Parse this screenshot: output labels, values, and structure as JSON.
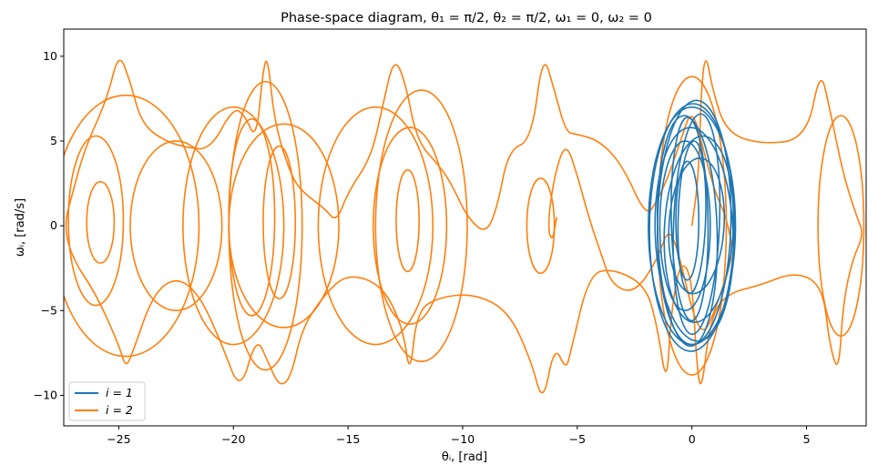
{
  "chart_data": {
    "type": "line",
    "title": "Phase-space diagram, θ₁ = π/2, θ₂ = π/2, ω₁ = 0, ω₂ = 0",
    "xlabel": "θᵢ, [rad]",
    "ylabel": "ωᵢ, [rad/s]",
    "xlim": [
      -27.4,
      7.6
    ],
    "ylim": [
      -11.8,
      11.6
    ],
    "xticks": [
      -25,
      -20,
      -15,
      -10,
      -5,
      0,
      5
    ],
    "yticks": [
      -10,
      -5,
      0,
      5,
      10
    ],
    "xtick_labels": [
      "−25",
      "−20",
      "−15",
      "−10",
      "−5",
      "0",
      "5"
    ],
    "ytick_labels": [
      "−10",
      "−5",
      "0",
      "5",
      "10"
    ],
    "grid": false,
    "legend_position": "lower-left",
    "series": [
      {
        "name": "i = 1",
        "color": "#1f77b4",
        "description_kind": "loops",
        "loops": [
          {
            "cx": 0.0,
            "cy": 0.0,
            "rx": 1.9,
            "ry": 7.0,
            "rot": 0.0
          },
          {
            "cx": 0.1,
            "cy": 0.2,
            "rx": 1.6,
            "ry": 7.2,
            "rot": 0.02
          },
          {
            "cx": -0.2,
            "cy": -0.3,
            "rx": 1.3,
            "ry": 6.8,
            "rot": -0.03
          },
          {
            "cx": 0.2,
            "cy": 0.1,
            "rx": 1.0,
            "ry": 6.5,
            "rot": 0.04
          },
          {
            "cx": -0.1,
            "cy": 0.4,
            "rx": 0.8,
            "ry": 6.0,
            "rot": -0.02
          },
          {
            "cx": 0.3,
            "cy": -0.2,
            "rx": 1.5,
            "ry": 5.5,
            "rot": 0.05
          },
          {
            "cx": -0.3,
            "cy": 0.0,
            "rx": 1.1,
            "ry": 5.0,
            "rot": 0.0
          },
          {
            "cx": 0.0,
            "cy": 0.5,
            "rx": 0.6,
            "ry": 4.5,
            "rot": 0.03
          },
          {
            "cx": 0.1,
            "cy": -0.5,
            "rx": 1.7,
            "ry": 6.3,
            "rot": -0.04
          },
          {
            "cx": -0.2,
            "cy": 0.3,
            "rx": 0.5,
            "ry": 3.5,
            "rot": 0.0
          },
          {
            "cx": 0.2,
            "cy": 0.0,
            "rx": 1.2,
            "ry": 4.0,
            "rot": 0.06
          },
          {
            "cx": 0.0,
            "cy": -0.1,
            "rx": 1.85,
            "ry": 7.3,
            "rot": 0.01
          }
        ]
      },
      {
        "name": "i = 2",
        "color": "#ff7f0e",
        "description_kind": "polyline",
        "points": [
          [
            0.0,
            0.0
          ],
          [
            0.3,
            3.0
          ],
          [
            0.4,
            8.0
          ],
          [
            0.6,
            10.3
          ],
          [
            0.9,
            8.0
          ],
          [
            1.5,
            5.5
          ],
          [
            3.0,
            4.8
          ],
          [
            5.0,
            5.1
          ],
          [
            5.6,
            9.3
          ],
          [
            6.0,
            7.0
          ],
          [
            6.6,
            3.0
          ],
          [
            7.2,
            0.5
          ],
          [
            7.5,
            -0.5
          ],
          [
            7.0,
            -2.0
          ],
          [
            6.6,
            -4.5
          ],
          [
            6.4,
            -8.8
          ],
          [
            6.0,
            -7.0
          ],
          [
            5.7,
            -3.5
          ],
          [
            4.5,
            -2.7
          ],
          [
            3.0,
            -3.5
          ],
          [
            1.5,
            -4.0
          ],
          [
            0.8,
            -5.5
          ],
          [
            0.4,
            -10.0
          ],
          [
            0.2,
            -8.0
          ],
          [
            0.0,
            -3.0
          ],
          [
            -0.5,
            -2.0
          ],
          [
            -0.9,
            -5.0
          ],
          [
            -1.1,
            -9.6
          ],
          [
            -1.5,
            -6.0
          ],
          [
            -2.0,
            -3.5
          ],
          [
            -3.5,
            -2.5
          ],
          [
            -4.5,
            -2.9
          ],
          [
            -5.3,
            -7.5
          ],
          [
            -5.5,
            -8.5
          ],
          [
            -6.0,
            -7.0
          ],
          [
            -6.5,
            -10.6
          ],
          [
            -7.0,
            -8.0
          ],
          [
            -8.0,
            -5.0
          ],
          [
            -9.5,
            -4.0
          ],
          [
            -11.0,
            -4.2
          ],
          [
            -12.0,
            -5.0
          ],
          [
            -12.3,
            -9.0
          ],
          [
            -12.6,
            -6.0
          ],
          [
            -13.5,
            -3.5
          ],
          [
            -15.0,
            -2.8
          ],
          [
            -16.0,
            -4.0
          ],
          [
            -17.0,
            -6.0
          ],
          [
            -17.5,
            -9.0
          ],
          [
            -18.0,
            -9.5
          ],
          [
            -18.5,
            -8.0
          ],
          [
            -19.0,
            -6.5
          ],
          [
            -19.7,
            -9.9
          ],
          [
            -20.5,
            -7.0
          ],
          [
            -21.5,
            -4.0
          ],
          [
            -22.5,
            -3.0
          ],
          [
            -23.5,
            -4.0
          ],
          [
            -24.4,
            -7.5
          ],
          [
            -24.7,
            -8.4
          ],
          [
            -25.0,
            -7.0
          ],
          [
            -26.0,
            -4.0
          ],
          [
            -27.0,
            -2.0
          ],
          [
            -27.4,
            0.0
          ],
          [
            -27.0,
            2.0
          ],
          [
            -26.5,
            4.5
          ],
          [
            -25.5,
            7.5
          ],
          [
            -25.0,
            10.3
          ],
          [
            -24.5,
            8.5
          ],
          [
            -24.0,
            6.0
          ],
          [
            -23.0,
            5.0
          ],
          [
            -22.0,
            4.6
          ],
          [
            -21.0,
            4.5
          ],
          [
            -20.0,
            7.0
          ],
          [
            -19.5,
            6.5
          ],
          [
            -19.0,
            5.0
          ],
          [
            -18.7,
            9.3
          ],
          [
            -18.5,
            10.0
          ],
          [
            -18.2,
            6.0
          ],
          [
            -17.5,
            3.0
          ],
          [
            -17.0,
            2.0
          ],
          [
            -16.0,
            1.0
          ],
          [
            -15.5,
            0.2
          ],
          [
            -15.0,
            2.0
          ],
          [
            -14.0,
            4.0
          ],
          [
            -13.5,
            7.0
          ],
          [
            -13.0,
            10.0
          ],
          [
            -12.5,
            8.5
          ],
          [
            -12.0,
            5.0
          ],
          [
            -11.0,
            3.5
          ],
          [
            -10.5,
            2.5
          ],
          [
            -9.8,
            0.5
          ],
          [
            -9.0,
            -0.5
          ],
          [
            -8.5,
            1.0
          ],
          [
            -8.0,
            4.5
          ],
          [
            -7.0,
            5.0
          ],
          [
            -6.5,
            10.3
          ],
          [
            -6.0,
            8.0
          ],
          [
            -5.5,
            5.5
          ],
          [
            -5.0,
            5.4
          ],
          [
            -4.0,
            5.0
          ],
          [
            -3.0,
            3.5
          ],
          [
            -2.0,
            0.5
          ],
          [
            -1.5,
            1.5
          ],
          [
            -1.0,
            3.0
          ],
          [
            -0.5,
            5.0
          ],
          [
            0.0,
            7.0
          ],
          [
            0.5,
            4.5
          ],
          [
            1.0,
            2.0
          ],
          [
            1.5,
            0.5
          ],
          [
            1.8,
            -1.5
          ],
          [
            1.5,
            -3.0
          ],
          [
            1.0,
            -5.0
          ],
          [
            0.5,
            -6.5
          ],
          [
            0.0,
            -5.0
          ],
          [
            -0.5,
            -2.0
          ],
          [
            -1.0,
            0.0
          ],
          [
            -1.5,
            -2.0
          ],
          [
            -2.5,
            -4.0
          ],
          [
            -3.5,
            -3.5
          ],
          [
            -4.0,
            -1.5
          ],
          [
            -4.5,
            0.5
          ],
          [
            -5.0,
            3.0
          ],
          [
            -5.5,
            5.0
          ],
          [
            -6.0,
            3.0
          ],
          [
            -6.3,
            0.0
          ],
          [
            -6.1,
            -1.0
          ],
          [
            -5.9,
            0.5
          ]
        ],
        "extra_loops": [
          {
            "cx": -26.0,
            "cy": 0.3,
            "rx": 1.2,
            "ry": 5.0
          },
          {
            "cx": -25.8,
            "cy": 0.2,
            "rx": 0.6,
            "ry": 2.4
          },
          {
            "cx": -20.0,
            "cy": 0.0,
            "rx": 2.2,
            "ry": 7.0
          },
          {
            "cx": -19.2,
            "cy": 0.5,
            "rx": 1.0,
            "ry": 5.8
          },
          {
            "cx": -18.6,
            "cy": 0.0,
            "rx": 1.6,
            "ry": 8.5
          },
          {
            "cx": -18.0,
            "cy": 0.2,
            "rx": 0.7,
            "ry": 4.5
          },
          {
            "cx": -17.8,
            "cy": 0.0,
            "rx": 2.4,
            "ry": 6.0
          },
          {
            "cx": -13.8,
            "cy": 0.0,
            "rx": 2.5,
            "ry": 7.0
          },
          {
            "cx": -12.3,
            "cy": 0.0,
            "rx": 1.6,
            "ry": 5.8
          },
          {
            "cx": -12.4,
            "cy": 0.3,
            "rx": 0.5,
            "ry": 3.0
          },
          {
            "cx": -11.8,
            "cy": 0.0,
            "rx": 2.0,
            "ry": 8.0
          },
          {
            "cx": -6.6,
            "cy": 0.0,
            "rx": 0.6,
            "ry": 2.8
          },
          {
            "cx": 0.0,
            "cy": 0.0,
            "rx": 1.5,
            "ry": 8.8
          },
          {
            "cx": 6.5,
            "cy": 0.0,
            "rx": 1.0,
            "ry": 6.5
          },
          {
            "cx": -24.7,
            "cy": 0.0,
            "rx": 3.2,
            "ry": 7.7
          },
          {
            "cx": -22.5,
            "cy": 0.0,
            "rx": 2.0,
            "ry": 5.0
          }
        ]
      }
    ]
  }
}
